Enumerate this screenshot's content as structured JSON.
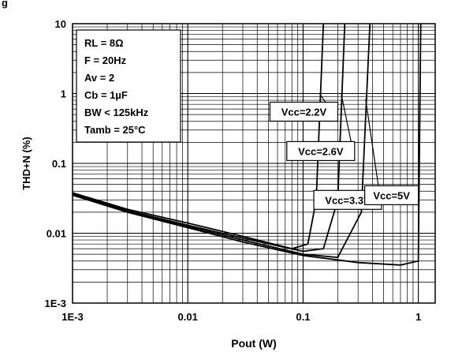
{
  "top_crop_text": "g",
  "chart_data": {
    "type": "line",
    "title": "",
    "xlabel": "Pout (W)",
    "ylabel": "THD+N (%)",
    "x_scale": "log",
    "y_scale": "log",
    "xlim": [
      0.001,
      1.4
    ],
    "ylim": [
      0.001,
      10
    ],
    "grid": true,
    "x_ticks": [
      {
        "value": 0.001,
        "label": "1E-3"
      },
      {
        "value": 0.01,
        "label": "0.01"
      },
      {
        "value": 0.1,
        "label": "0.1"
      },
      {
        "value": 1,
        "label": "1"
      }
    ],
    "y_ticks": [
      {
        "value": 0.001,
        "label": "1E-3"
      },
      {
        "value": 0.01,
        "label": "0.01"
      },
      {
        "value": 0.1,
        "label": "0.1"
      },
      {
        "value": 1,
        "label": "1"
      },
      {
        "value": 10,
        "label": "10"
      }
    ],
    "conditions": [
      "RL = 8Ω",
      "F = 20Hz",
      "Av = 2",
      "Cb = 1µF",
      "BW < 125kHz",
      "Tamb = 25°C"
    ],
    "series": [
      {
        "name": "Vcc=2.2V",
        "x": [
          0.001,
          0.003,
          0.01,
          0.03,
          0.08,
          0.11,
          0.13,
          0.15
        ],
        "y": [
          0.038,
          0.022,
          0.014,
          0.009,
          0.006,
          0.007,
          0.03,
          10
        ]
      },
      {
        "name": "Vcc=2.6V",
        "x": [
          0.001,
          0.003,
          0.01,
          0.03,
          0.1,
          0.15,
          0.2,
          0.23
        ],
        "y": [
          0.037,
          0.021,
          0.013,
          0.0085,
          0.0055,
          0.006,
          0.03,
          10
        ]
      },
      {
        "name": "Vcc=3.3V",
        "x": [
          0.001,
          0.003,
          0.01,
          0.03,
          0.1,
          0.2,
          0.32,
          0.38
        ],
        "y": [
          0.036,
          0.02,
          0.0125,
          0.008,
          0.005,
          0.0045,
          0.02,
          10
        ]
      },
      {
        "name": "Vcc=5V",
        "x": [
          0.001,
          0.003,
          0.01,
          0.03,
          0.1,
          0.3,
          0.7,
          1.0,
          1.05
        ],
        "y": [
          0.035,
          0.02,
          0.012,
          0.0075,
          0.0048,
          0.0038,
          0.0035,
          0.004,
          10
        ]
      }
    ],
    "annotations": [
      {
        "text": "Vcc=2.2V",
        "x": 0.2,
        "y": 0.55
      },
      {
        "text": "Vcc=2.6V",
        "x": 0.28,
        "y": 0.15
      },
      {
        "text": "Vcc=3.3V",
        "x": 0.48,
        "y": 0.03
      },
      {
        "text": "Vcc=5V",
        "x": 1.0,
        "y": 0.035
      }
    ]
  }
}
